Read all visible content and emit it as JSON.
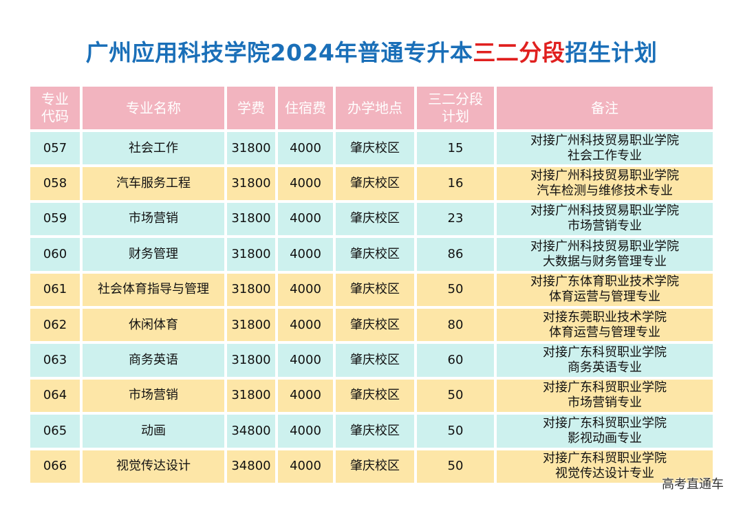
{
  "title": {
    "prefix": "广州应用科技学院2024年普通专升本",
    "highlight": "三二分段",
    "suffix": "招生计划",
    "colors": {
      "main": "#1a6fb8",
      "highlight": "#e0201f"
    }
  },
  "table": {
    "headers": {
      "code_l1": "专业",
      "code_l2": "代码",
      "name": "专业名称",
      "tuition": "学费",
      "dorm": "住宿费",
      "campus": "办学地点",
      "plan_l1": "三二分段",
      "plan_l2": "计划",
      "note": "备注"
    },
    "rows": [
      {
        "code": "057",
        "name": "社会工作",
        "tuition": "31800",
        "dorm": "4000",
        "campus": "肇庆校区",
        "plan": "15",
        "note1": "对接广州科技贸易职业学院",
        "note2": "社会工作专业",
        "color": "cyan"
      },
      {
        "code": "058",
        "name": "汽车服务工程",
        "tuition": "31800",
        "dorm": "4000",
        "campus": "肇庆校区",
        "plan": "16",
        "note1": "对接广州科技贸易职业学院",
        "note2": "汽车检测与维修技术专业",
        "color": "yellow"
      },
      {
        "code": "059",
        "name": "市场营销",
        "tuition": "31800",
        "dorm": "4000",
        "campus": "肇庆校区",
        "plan": "23",
        "note1": "对接广州科技贸易职业学院",
        "note2": "市场营销专业",
        "color": "cyan"
      },
      {
        "code": "060",
        "name": "财务管理",
        "tuition": "31800",
        "dorm": "4000",
        "campus": "肇庆校区",
        "plan": "86",
        "note1": "对接广州科技贸易职业学院",
        "note2": "大数据与财务管理专业",
        "color": "cyan"
      },
      {
        "code": "061",
        "name": "社会体育指导与管理",
        "tuition": "31800",
        "dorm": "4000",
        "campus": "肇庆校区",
        "plan": "50",
        "note1": "对接广东体育职业技术学院",
        "note2": "体育运营与管理专业",
        "color": "yellow"
      },
      {
        "code": "062",
        "name": "休闲体育",
        "tuition": "31800",
        "dorm": "4000",
        "campus": "肇庆校区",
        "plan": "80",
        "note1": "对接东莞职业技术学院",
        "note2": "体育运营与管理专业",
        "color": "yellow"
      },
      {
        "code": "063",
        "name": "商务英语",
        "tuition": "31800",
        "dorm": "4000",
        "campus": "肇庆校区",
        "plan": "60",
        "note1": "对接广东科贸职业学院",
        "note2": "商务英语专业",
        "color": "cyan"
      },
      {
        "code": "064",
        "name": "市场营销",
        "tuition": "31800",
        "dorm": "4000",
        "campus": "肇庆校区",
        "plan": "50",
        "note1": "对接广东科贸职业学院",
        "note2": "市场营销专业",
        "color": "yellow"
      },
      {
        "code": "065",
        "name": "动画",
        "tuition": "34800",
        "dorm": "4000",
        "campus": "肇庆校区",
        "plan": "50",
        "note1": "对接广东科贸职业学院",
        "note2": "影视动画专业",
        "color": "cyan"
      },
      {
        "code": "066",
        "name": "视觉传达设计",
        "tuition": "34800",
        "dorm": "4000",
        "campus": "肇庆校区",
        "plan": "50",
        "note1": "对接广东科贸职业学院",
        "note2": "视觉传达设计专业",
        "color": "yellow"
      }
    ],
    "colors": {
      "header": "#f2b4bf",
      "cyan": "#cdf1ee",
      "yellow": "#fde6a7"
    }
  },
  "watermark": "高考直通车"
}
